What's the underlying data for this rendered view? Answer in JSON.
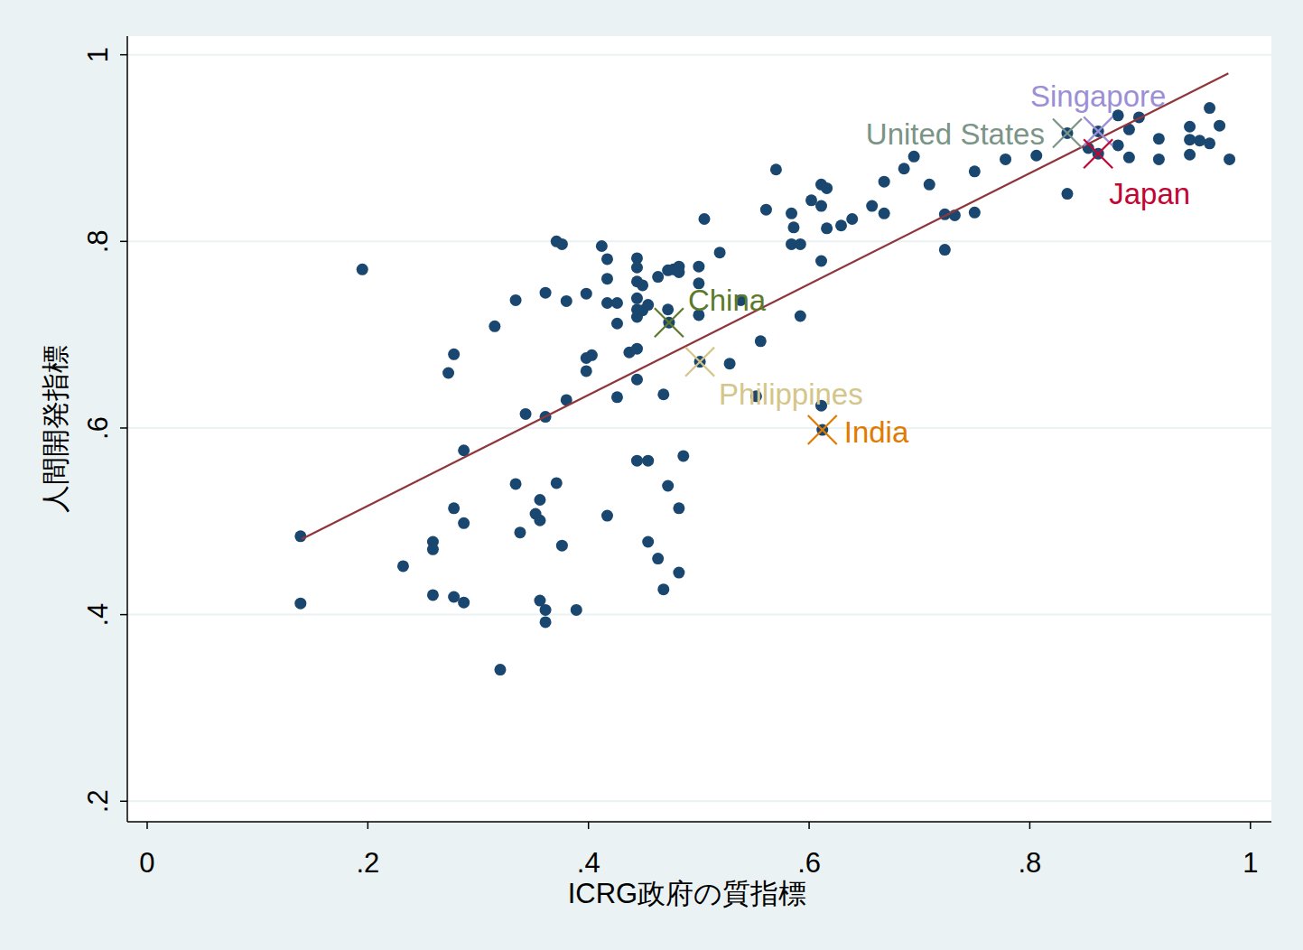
{
  "chart_data": {
    "type": "scatter",
    "x_label": "ICRG政府の質指標",
    "y_label": "人間開発指標",
    "xlim": [
      -0.018,
      1.019
    ],
    "ylim": [
      0.178,
      1.02
    ],
    "xticks": [
      0,
      {
        "value": 0.2,
        "label": ".2"
      },
      {
        "value": 0.4,
        "label": ".4"
      },
      {
        "value": 0.6,
        "label": ".6"
      },
      {
        "value": 0.8,
        "label": ".8"
      },
      1
    ],
    "yticks": [
      {
        "value": 0.2,
        "label": ".2"
      },
      {
        "value": 0.4,
        "label": ".4"
      },
      {
        "value": 0.6,
        "label": ".6"
      },
      {
        "value": 0.8,
        "label": ".8"
      },
      1
    ],
    "grid": true,
    "series": [
      {
        "type": "scatter",
        "color": "#1a476f",
        "marker": "circle",
        "x": [
          0.139,
          0.139,
          0.195,
          0.232,
          0.259,
          0.259,
          0.259,
          0.273,
          0.278,
          0.278,
          0.278,
          0.287,
          0.287,
          0.287,
          0.315,
          0.32,
          0.334,
          0.334,
          0.338,
          0.343,
          0.352,
          0.356,
          0.356,
          0.356,
          0.361,
          0.361,
          0.361,
          0.361,
          0.371,
          0.371,
          0.376,
          0.376,
          0.38,
          0.38,
          0.389,
          0.398,
          0.398,
          0.398,
          0.403,
          0.412,
          0.417,
          0.417,
          0.417,
          0.417,
          0.426,
          0.426,
          0.426,
          0.437,
          0.444,
          0.444,
          0.444,
          0.444,
          0.444,
          0.444,
          0.444,
          0.444,
          0.444,
          0.449,
          0.449,
          0.454,
          0.454,
          0.454,
          0.463,
          0.463,
          0.468,
          0.468,
          0.472,
          0.472,
          0.472,
          0.477,
          0.482,
          0.482,
          0.482,
          0.482,
          0.486,
          0.5,
          0.5,
          0.5,
          0.505,
          0.519,
          0.528,
          0.538,
          0.552,
          0.556,
          0.561,
          0.57,
          0.584,
          0.584,
          0.586,
          0.592,
          0.592,
          0.602,
          0.611,
          0.611,
          0.611,
          0.611,
          0.616,
          0.616,
          0.629,
          0.639,
          0.657,
          0.668,
          0.668,
          0.686,
          0.695,
          0.709,
          0.723,
          0.723,
          0.732,
          0.75,
          0.75,
          0.778,
          0.806,
          0.834,
          0.834,
          0.853,
          0.862,
          0.862,
          0.88,
          0.88,
          0.89,
          0.89,
          0.899,
          0.917,
          0.917,
          0.945,
          0.945,
          0.945,
          0.954,
          0.963,
          0.963,
          0.972,
          0.981,
          0.612,
          0.473,
          0.501
        ],
        "values": [
          0.484,
          0.412,
          0.77,
          0.452,
          0.478,
          0.47,
          0.421,
          0.659,
          0.679,
          0.514,
          0.419,
          0.576,
          0.498,
          0.413,
          0.709,
          0.341,
          0.737,
          0.54,
          0.488,
          0.615,
          0.508,
          0.523,
          0.501,
          0.415,
          0.612,
          0.745,
          0.405,
          0.392,
          0.541,
          0.8,
          0.797,
          0.474,
          0.736,
          0.63,
          0.405,
          0.744,
          0.675,
          0.661,
          0.678,
          0.795,
          0.781,
          0.76,
          0.734,
          0.506,
          0.734,
          0.712,
          0.633,
          0.681,
          0.782,
          0.772,
          0.757,
          0.739,
          0.727,
          0.719,
          0.685,
          0.652,
          0.565,
          0.753,
          0.726,
          0.732,
          0.565,
          0.478,
          0.762,
          0.46,
          0.636,
          0.427,
          0.769,
          0.727,
          0.538,
          0.77,
          0.767,
          0.445,
          0.514,
          0.773,
          0.57,
          0.773,
          0.755,
          0.721,
          0.824,
          0.788,
          0.669,
          0.737,
          0.634,
          0.693,
          0.834,
          0.877,
          0.83,
          0.797,
          0.815,
          0.797,
          0.72,
          0.844,
          0.861,
          0.838,
          0.779,
          0.624,
          0.857,
          0.814,
          0.817,
          0.824,
          0.838,
          0.83,
          0.864,
          0.878,
          0.891,
          0.861,
          0.791,
          0.829,
          0.828,
          0.831,
          0.875,
          0.888,
          0.892,
          0.851,
          0.916,
          0.9,
          0.918,
          0.894,
          0.935,
          0.903,
          0.92,
          0.89,
          0.933,
          0.91,
          0.888,
          0.923,
          0.909,
          0.893,
          0.908,
          0.943,
          0.905,
          0.924,
          0.888,
          0.598,
          0.713,
          0.671
        ]
      },
      {
        "type": "line",
        "color": "#90353b",
        "line_style": "solid",
        "x": [
          0.14,
          0.98
        ],
        "values": [
          0.481,
          0.98
        ]
      },
      {
        "type": "scatter",
        "name": "United States",
        "color": "#7a9487",
        "marker": "x",
        "x": [
          0.834
        ],
        "values": [
          0.916
        ]
      },
      {
        "type": "scatter",
        "name": "Singapore",
        "color": "#9b8fd6",
        "marker": "x",
        "x": [
          0.862
        ],
        "values": [
          0.918
        ]
      },
      {
        "type": "scatter",
        "name": "Japan",
        "color": "#c10534",
        "marker": "x",
        "x": [
          0.862
        ],
        "values": [
          0.894
        ]
      },
      {
        "type": "scatter",
        "name": "China",
        "color": "#5d7a2b",
        "marker": "x",
        "x": [
          0.473
        ],
        "values": [
          0.713
        ]
      },
      {
        "type": "scatter",
        "name": "Philippines",
        "color": "#d4c68a",
        "marker": "x",
        "x": [
          0.501
        ],
        "values": [
          0.671
        ]
      },
      {
        "type": "scatter",
        "name": "India",
        "color": "#e07b00",
        "marker": "x",
        "x": [
          0.612
        ],
        "values": [
          0.598
        ]
      }
    ]
  }
}
